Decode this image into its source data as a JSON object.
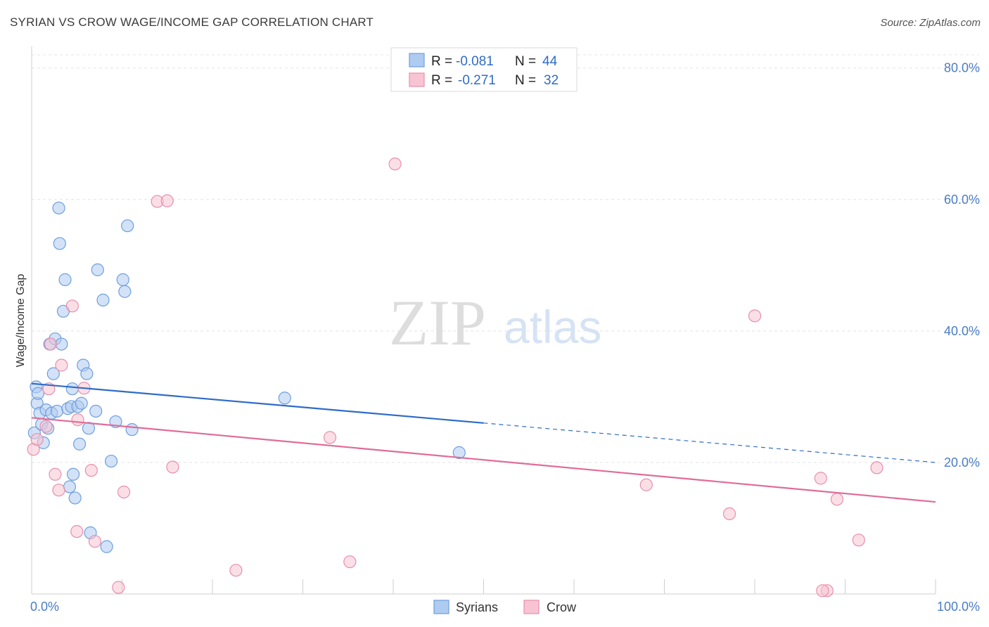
{
  "header": {
    "title": "SYRIAN VS CROW WAGE/INCOME GAP CORRELATION CHART",
    "source": "Source: ZipAtlas.com"
  },
  "watermark": {
    "zip": "ZIP",
    "atlas": "atlas"
  },
  "legend": {
    "rows": [
      {
        "r_label": "R =",
        "r_value": "-0.081",
        "n_label": "N =",
        "n_value": "44",
        "color": "#aecbf0",
        "stroke": "#6f9fde"
      },
      {
        "r_label": "R =",
        "r_value": "-0.271",
        "n_label": "N =",
        "n_value": "32",
        "color": "#f8c4d4",
        "stroke": "#e88fab"
      }
    ]
  },
  "bottom_legend": [
    {
      "label": "Syrians",
      "color": "#aecbf0",
      "stroke": "#6f9fde"
    },
    {
      "label": "Crow",
      "color": "#f8c4d4",
      "stroke": "#e88fab"
    }
  ],
  "chart_data": {
    "type": "scatter",
    "title": "SYRIAN VS CROW WAGE/INCOME GAP CORRELATION CHART",
    "xlabel": "",
    "ylabel": "Wage/Income Gap",
    "xlim": [
      0,
      100
    ],
    "ylim": [
      0,
      82
    ],
    "x_tick_labels": [
      "0.0%",
      "100.0%"
    ],
    "y_ticks": [
      20,
      40,
      60,
      80
    ],
    "y_tick_labels": [
      "20.0%",
      "40.0%",
      "60.0%",
      "80.0%"
    ],
    "grid": true,
    "legend_position": "top-center",
    "series": [
      {
        "name": "Syrians",
        "color": "#6f9fde",
        "fill": "#aecbf0",
        "points": [
          [
            0.3,
            24.5
          ],
          [
            0.5,
            31.5
          ],
          [
            0.6,
            29.0
          ],
          [
            0.7,
            30.5
          ],
          [
            0.9,
            27.5
          ],
          [
            1.1,
            25.8
          ],
          [
            1.3,
            23.0
          ],
          [
            1.6,
            28.0
          ],
          [
            1.8,
            25.2
          ],
          [
            2.0,
            38.0
          ],
          [
            2.2,
            27.5
          ],
          [
            2.4,
            33.5
          ],
          [
            2.6,
            38.8
          ],
          [
            2.8,
            27.8
          ],
          [
            3.0,
            58.7
          ],
          [
            3.1,
            53.3
          ],
          [
            3.3,
            38.0
          ],
          [
            3.5,
            43.0
          ],
          [
            3.7,
            47.8
          ],
          [
            4.0,
            28.2
          ],
          [
            4.2,
            16.3
          ],
          [
            4.4,
            28.5
          ],
          [
            4.5,
            31.2
          ],
          [
            4.6,
            18.2
          ],
          [
            4.8,
            14.6
          ],
          [
            5.1,
            28.5
          ],
          [
            5.3,
            22.8
          ],
          [
            5.5,
            29.0
          ],
          [
            5.7,
            34.8
          ],
          [
            6.1,
            33.5
          ],
          [
            6.3,
            25.2
          ],
          [
            6.5,
            9.3
          ],
          [
            7.1,
            27.8
          ],
          [
            7.3,
            49.3
          ],
          [
            7.9,
            44.7
          ],
          [
            8.3,
            7.2
          ],
          [
            8.8,
            20.2
          ],
          [
            9.3,
            26.2
          ],
          [
            10.1,
            47.8
          ],
          [
            10.3,
            46.0
          ],
          [
            10.6,
            56.0
          ],
          [
            11.1,
            25.0
          ],
          [
            28.0,
            29.8
          ],
          [
            47.3,
            21.5
          ]
        ]
      },
      {
        "name": "Crow",
        "color": "#e88fab",
        "fill": "#f8c4d4",
        "points": [
          [
            0.2,
            22.0
          ],
          [
            0.6,
            23.5
          ],
          [
            1.6,
            25.5
          ],
          [
            1.9,
            31.2
          ],
          [
            2.1,
            38.0
          ],
          [
            2.6,
            18.2
          ],
          [
            3.0,
            15.8
          ],
          [
            3.3,
            34.8
          ],
          [
            4.5,
            43.8
          ],
          [
            5.0,
            9.5
          ],
          [
            5.1,
            26.5
          ],
          [
            5.8,
            31.3
          ],
          [
            6.6,
            18.8
          ],
          [
            7.0,
            8.0
          ],
          [
            9.6,
            1.0
          ],
          [
            10.2,
            15.5
          ],
          [
            13.9,
            59.7
          ],
          [
            15.0,
            59.8
          ],
          [
            15.6,
            19.3
          ],
          [
            22.6,
            3.6
          ],
          [
            33.0,
            23.8
          ],
          [
            35.2,
            4.9
          ],
          [
            40.2,
            65.4
          ],
          [
            68.0,
            16.6
          ],
          [
            77.2,
            12.2
          ],
          [
            80.0,
            42.3
          ],
          [
            87.3,
            17.6
          ],
          [
            88.0,
            0.5
          ],
          [
            87.5,
            0.5
          ],
          [
            89.1,
            14.4
          ],
          [
            91.5,
            8.2
          ],
          [
            93.5,
            19.2
          ]
        ]
      }
    ],
    "trendlines": [
      {
        "series": "Syrians",
        "color": "#2f6cc7",
        "solid": [
          [
            0,
            32.0
          ],
          [
            50,
            26.0
          ]
        ],
        "dashed": [
          [
            50,
            26.0
          ],
          [
            100,
            20.0
          ]
        ]
      },
      {
        "series": "Crow",
        "color": "#e06c98",
        "solid": [
          [
            0,
            26.8
          ],
          [
            100,
            14.0
          ]
        ]
      }
    ]
  }
}
